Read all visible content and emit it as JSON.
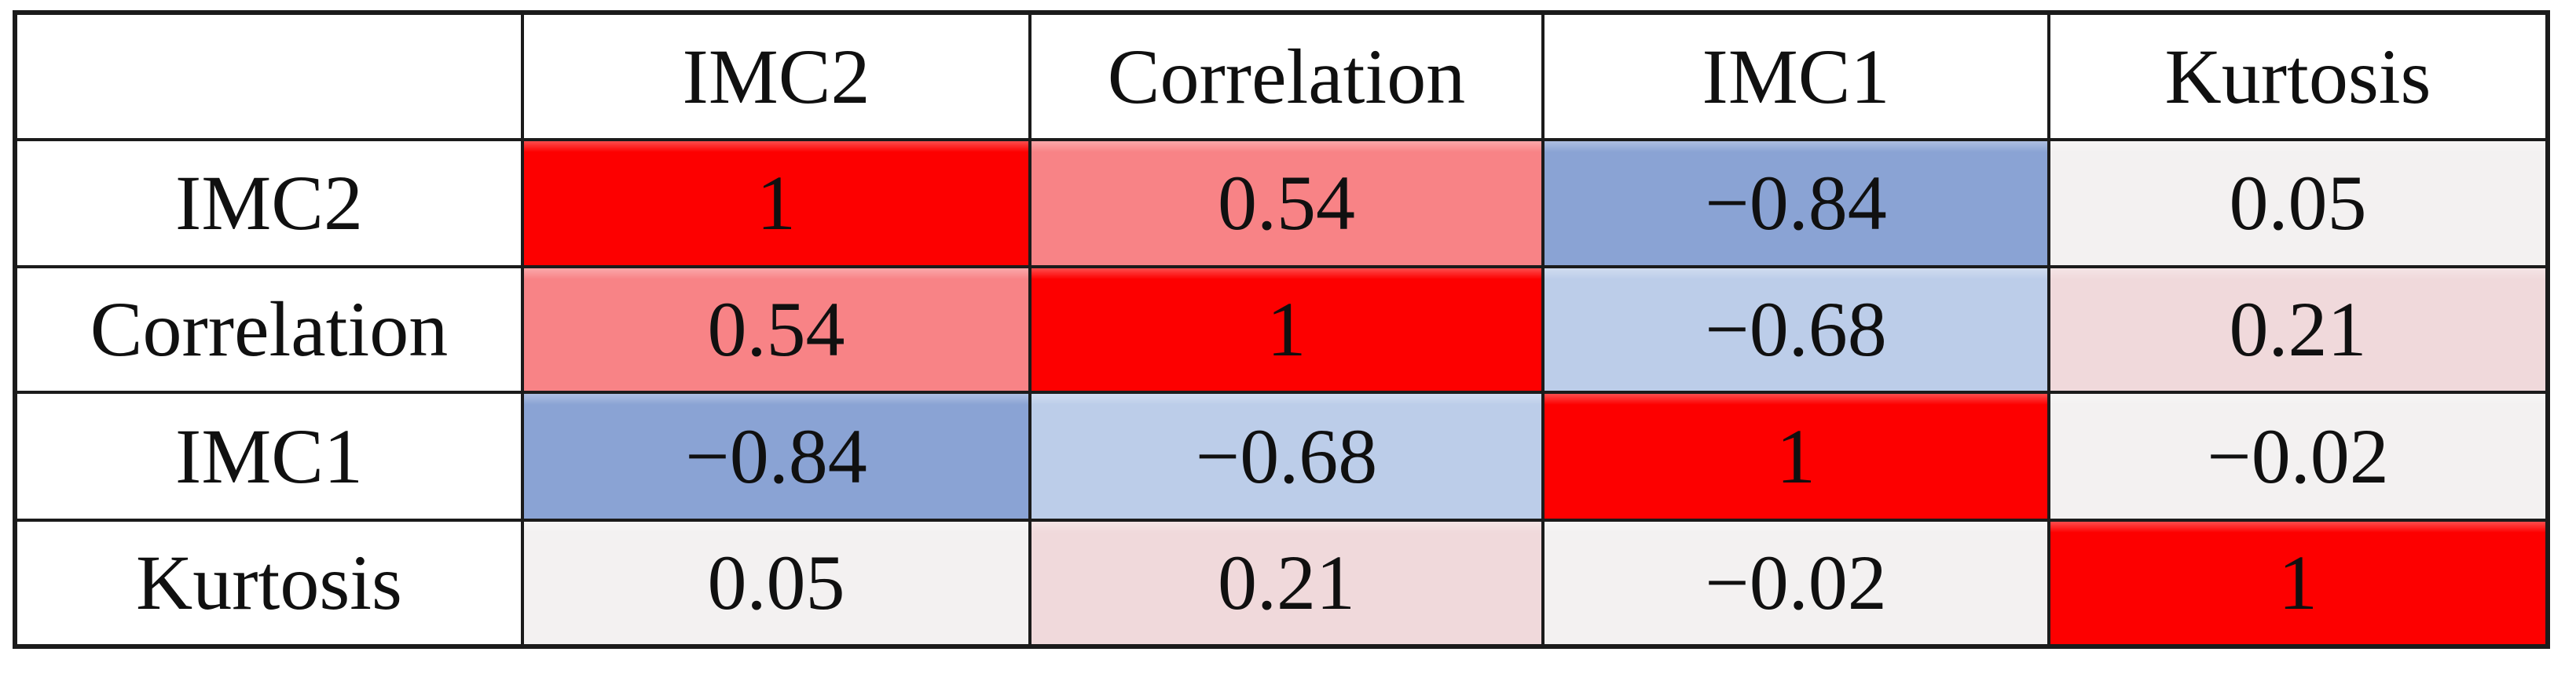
{
  "colors": {
    "border": "#1b1b1b",
    "diagonal_red": "#fd0000",
    "salmon_pos": "#f88386",
    "blue_neg_strong": "#8aa3d4",
    "blue_neg_mild": "#bccde9",
    "pink_pos_weak": "#f0d9db",
    "gray_near_zero": "#f3f1f1",
    "white": "#ffffff"
  },
  "chart_data": {
    "type": "heatmap",
    "variables": [
      "IMC2",
      "Correlation",
      "IMC1",
      "Kurtosis"
    ],
    "matrix": [
      [
        1,
        0.54,
        -0.84,
        0.05
      ],
      [
        0.54,
        1,
        -0.68,
        0.21
      ],
      [
        -0.84,
        -0.68,
        1,
        -0.02
      ],
      [
        0.05,
        0.21,
        -0.02,
        1
      ]
    ],
    "colormap": "diverging red (positive) to blue (negative), diagonal pure red",
    "legend": "none",
    "gridlines": "black cell borders"
  },
  "table": {
    "corner": "",
    "col_headers": [
      "IMC2",
      "Correlation",
      "IMC1",
      "Kurtosis"
    ],
    "rows": [
      {
        "label": "IMC2",
        "cells": [
          {
            "text": "1",
            "bg": "#fd0000"
          },
          {
            "text": "0.54",
            "bg": "#f88386"
          },
          {
            "text": "−0.84",
            "bg": "#8aa3d4"
          },
          {
            "text": "0.05",
            "bg": "#f3f1f1"
          }
        ]
      },
      {
        "label": "Correlation",
        "cells": [
          {
            "text": "0.54",
            "bg": "#f88386"
          },
          {
            "text": "1",
            "bg": "#fd0000"
          },
          {
            "text": "−0.68",
            "bg": "#bccde9"
          },
          {
            "text": "0.21",
            "bg": "#f0d9db"
          }
        ]
      },
      {
        "label": "IMC1",
        "cells": [
          {
            "text": "−0.84",
            "bg": "#8aa3d4"
          },
          {
            "text": "−0.68",
            "bg": "#bccde9"
          },
          {
            "text": "1",
            "bg": "#fd0000"
          },
          {
            "text": "−0.02",
            "bg": "#f3f1f1"
          }
        ]
      },
      {
        "label": "Kurtosis",
        "cells": [
          {
            "text": "0.05",
            "bg": "#f3f1f1"
          },
          {
            "text": "0.21",
            "bg": "#f0d9db"
          },
          {
            "text": "−0.02",
            "bg": "#f3f1f1"
          },
          {
            "text": "1",
            "bg": "#fd0000"
          }
        ]
      }
    ]
  }
}
